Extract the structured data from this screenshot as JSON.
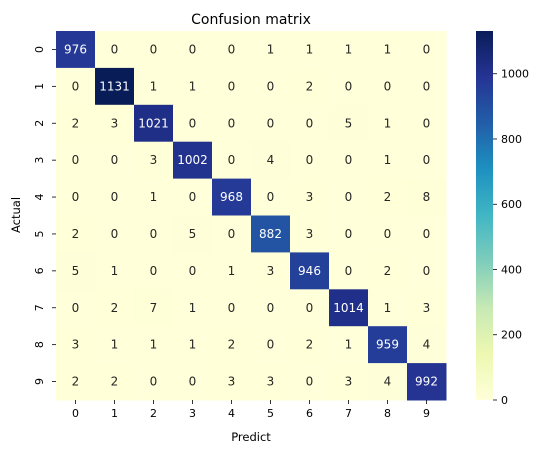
{
  "chart_data": {
    "type": "heatmap",
    "title": "Confusion matrix",
    "xlabel": "Predict",
    "ylabel": "Actual",
    "x_categories": [
      "0",
      "1",
      "2",
      "3",
      "4",
      "5",
      "6",
      "7",
      "8",
      "9"
    ],
    "y_categories": [
      "0",
      "1",
      "2",
      "3",
      "4",
      "5",
      "6",
      "7",
      "8",
      "9"
    ],
    "matrix": [
      [
        976,
        0,
        0,
        0,
        0,
        1,
        1,
        1,
        1,
        0
      ],
      [
        0,
        1131,
        1,
        1,
        0,
        0,
        2,
        0,
        0,
        0
      ],
      [
        2,
        3,
        1021,
        0,
        0,
        0,
        0,
        5,
        1,
        0
      ],
      [
        0,
        0,
        3,
        1002,
        0,
        4,
        0,
        0,
        1,
        0
      ],
      [
        0,
        0,
        1,
        0,
        968,
        0,
        3,
        0,
        2,
        8
      ],
      [
        2,
        0,
        0,
        5,
        0,
        882,
        3,
        0,
        0,
        0
      ],
      [
        5,
        1,
        0,
        0,
        1,
        3,
        946,
        0,
        2,
        0
      ],
      [
        0,
        2,
        7,
        1,
        0,
        0,
        0,
        1014,
        1,
        3
      ],
      [
        3,
        1,
        1,
        1,
        2,
        0,
        2,
        1,
        959,
        4
      ],
      [
        2,
        2,
        0,
        0,
        3,
        3,
        0,
        3,
        4,
        992
      ]
    ],
    "colormap": "YlGnBu",
    "color_range": [
      0,
      1131
    ],
    "colorbar_ticks": [
      "0",
      "200",
      "400",
      "600",
      "800",
      "1000"
    ],
    "colorbar_tick_values": [
      0,
      200,
      400,
      600,
      800,
      1000
    ]
  }
}
